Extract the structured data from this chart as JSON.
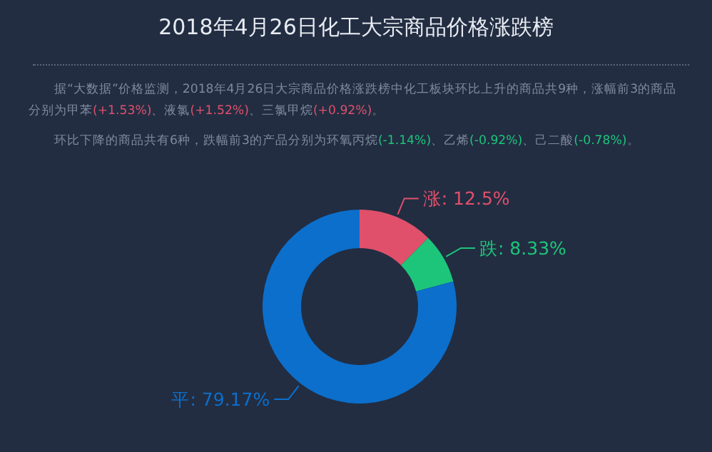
{
  "chart_data": {
    "type": "donut",
    "title": "2018年4月26日化工大宗商品价格涨跌榜",
    "annotations": [
      "据“大数据”价格监测，2018年4月26日大宗商品价格涨跌榜中化工板块环比上升的商品共9种，涨幅前3的商品分别为甲苯(+1.53%)、液氯(+1.52%)、三氯甲烷(+0.92%)。",
      "环比下降的商品共有6种，跌幅前3的产品分别为环氧丙烷(-1.14%)、乙烯(-0.92%)、己二酸(-0.78%)。"
    ],
    "categories": [
      "涨",
      "跌",
      "平"
    ],
    "values": [
      12.5,
      8.33,
      79.17
    ],
    "colors": [
      "#e0506a",
      "#1dc57a",
      "#0c6fcc"
    ],
    "value_labels": [
      "12.5%",
      "8.33%",
      "79.17%"
    ]
  }
}
